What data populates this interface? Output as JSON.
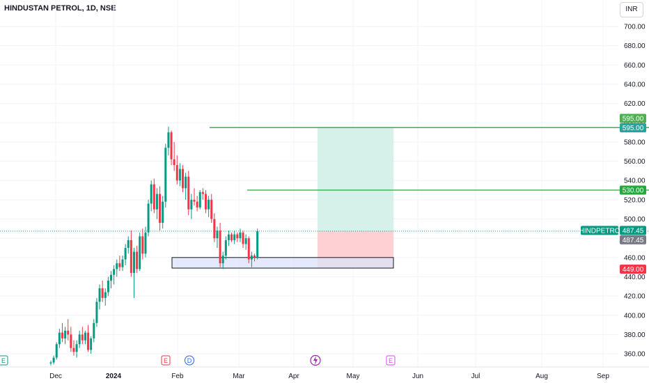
{
  "header": {
    "title": "HINDUSTAN PETROL, 1D, NSE",
    "currency_button": "INR"
  },
  "colors": {
    "up": "#089981",
    "down": "#f23645",
    "target_line": "#22ab3c",
    "target_label": "#4caf50",
    "last_price_label": "#26a69a",
    "stop_label": "#f23645",
    "profit_zone": "#d6f1ea",
    "loss_zone": "#fdd0d3",
    "support_box": "#dbe3fb",
    "ticker_badge": "#089981"
  },
  "chart_data": {
    "type": "candlestick",
    "x_axis": {
      "labels": [
        "Dec",
        "2024",
        "Feb",
        "Mar",
        "Apr",
        "May",
        "Jun",
        "Jul",
        "Aug",
        "Sep"
      ]
    },
    "y_axis": {
      "ticks": [
        "700.00",
        "680.00",
        "660.00",
        "640.00",
        "620.00",
        "600.00",
        "580.00",
        "560.00",
        "540.00",
        "520.00",
        "500.00",
        "480.00",
        "460.00",
        "440.00",
        "420.00",
        "400.00",
        "380.00",
        "360.00"
      ],
      "range": [
        345,
        715
      ]
    },
    "candles": [
      [
        350,
        353,
        348,
        351
      ],
      [
        351,
        358,
        349,
        356
      ],
      [
        356,
        372,
        354,
        370
      ],
      [
        370,
        386,
        366,
        382
      ],
      [
        382,
        392,
        372,
        376
      ],
      [
        376,
        388,
        370,
        384
      ],
      [
        384,
        396,
        374,
        380
      ],
      [
        380,
        388,
        362,
        366
      ],
      [
        366,
        374,
        358,
        362
      ],
      [
        362,
        374,
        356,
        370
      ],
      [
        370,
        384,
        366,
        380
      ],
      [
        380,
        388,
        370,
        374
      ],
      [
        374,
        384,
        370,
        382
      ],
      [
        382,
        390,
        362,
        364
      ],
      [
        364,
        378,
        360,
        376
      ],
      [
        376,
        396,
        372,
        392
      ],
      [
        392,
        418,
        388,
        414
      ],
      [
        414,
        432,
        406,
        428
      ],
      [
        428,
        436,
        414,
        418
      ],
      [
        418,
        428,
        410,
        424
      ],
      [
        424,
        440,
        420,
        436
      ],
      [
        436,
        446,
        428,
        442
      ],
      [
        442,
        452,
        432,
        448
      ],
      [
        448,
        458,
        440,
        454
      ],
      [
        454,
        462,
        446,
        450
      ],
      [
        450,
        462,
        446,
        458
      ],
      [
        458,
        474,
        452,
        470
      ],
      [
        470,
        482,
        464,
        478
      ],
      [
        478,
        488,
        440,
        444
      ],
      [
        444,
        470,
        418,
        466
      ],
      [
        466,
        472,
        444,
        448
      ],
      [
        448,
        486,
        446,
        482
      ],
      [
        482,
        490,
        458,
        464
      ],
      [
        464,
        492,
        460,
        486
      ],
      [
        486,
        520,
        482,
        516
      ],
      [
        516,
        540,
        508,
        536
      ],
      [
        536,
        542,
        506,
        510
      ],
      [
        510,
        532,
        500,
        526
      ],
      [
        526,
        534,
        488,
        496
      ],
      [
        496,
        524,
        490,
        518
      ],
      [
        518,
        578,
        512,
        574
      ],
      [
        574,
        596,
        566,
        590
      ],
      [
        590,
        592,
        556,
        562
      ],
      [
        562,
        580,
        550,
        556
      ],
      [
        556,
        566,
        536,
        540
      ],
      [
        540,
        558,
        534,
        552
      ],
      [
        552,
        556,
        528,
        532
      ],
      [
        532,
        548,
        520,
        544
      ],
      [
        544,
        550,
        504,
        510
      ],
      [
        510,
        526,
        500,
        520
      ],
      [
        520,
        532,
        514,
        518
      ],
      [
        518,
        524,
        508,
        512
      ],
      [
        512,
        530,
        510,
        528
      ],
      [
        528,
        532,
        520,
        526
      ],
      [
        526,
        530,
        506,
        510
      ],
      [
        510,
        524,
        502,
        520
      ],
      [
        520,
        526,
        496,
        500
      ],
      [
        500,
        506,
        476,
        480
      ],
      [
        480,
        492,
        470,
        488
      ],
      [
        488,
        496,
        450,
        454
      ],
      [
        454,
        466,
        448,
        462
      ],
      [
        462,
        482,
        458,
        478
      ],
      [
        478,
        488,
        472,
        484
      ],
      [
        484,
        486,
        476,
        478
      ],
      [
        478,
        488,
        474,
        484
      ],
      [
        484,
        486,
        476,
        480
      ],
      [
        480,
        490,
        476,
        486
      ],
      [
        486,
        488,
        470,
        474
      ],
      [
        474,
        484,
        468,
        480
      ],
      [
        480,
        482,
        454,
        458
      ],
      [
        458,
        466,
        450,
        462
      ],
      [
        462,
        464,
        456,
        460
      ],
      [
        460,
        490,
        458,
        487.45
      ]
    ],
    "levels": [
      {
        "name": "target_1",
        "price": 595,
        "label": "595.00"
      },
      {
        "name": "target_2",
        "price": 530,
        "label": "530.00"
      },
      {
        "name": "last_price",
        "price": 487.45,
        "label": "487.45"
      },
      {
        "name": "stop",
        "price": 449,
        "label": "449.00"
      }
    ],
    "extra_price_labels": [
      "595.00",
      "487.45"
    ],
    "ticker_badge": "HINDPETRO",
    "position_tool": {
      "entry": 487.45,
      "target": 595,
      "stop": 449
    },
    "support_zone": {
      "top": 460,
      "bottom": 449
    },
    "event_markers": [
      "E",
      "E",
      "D",
      "E"
    ]
  }
}
